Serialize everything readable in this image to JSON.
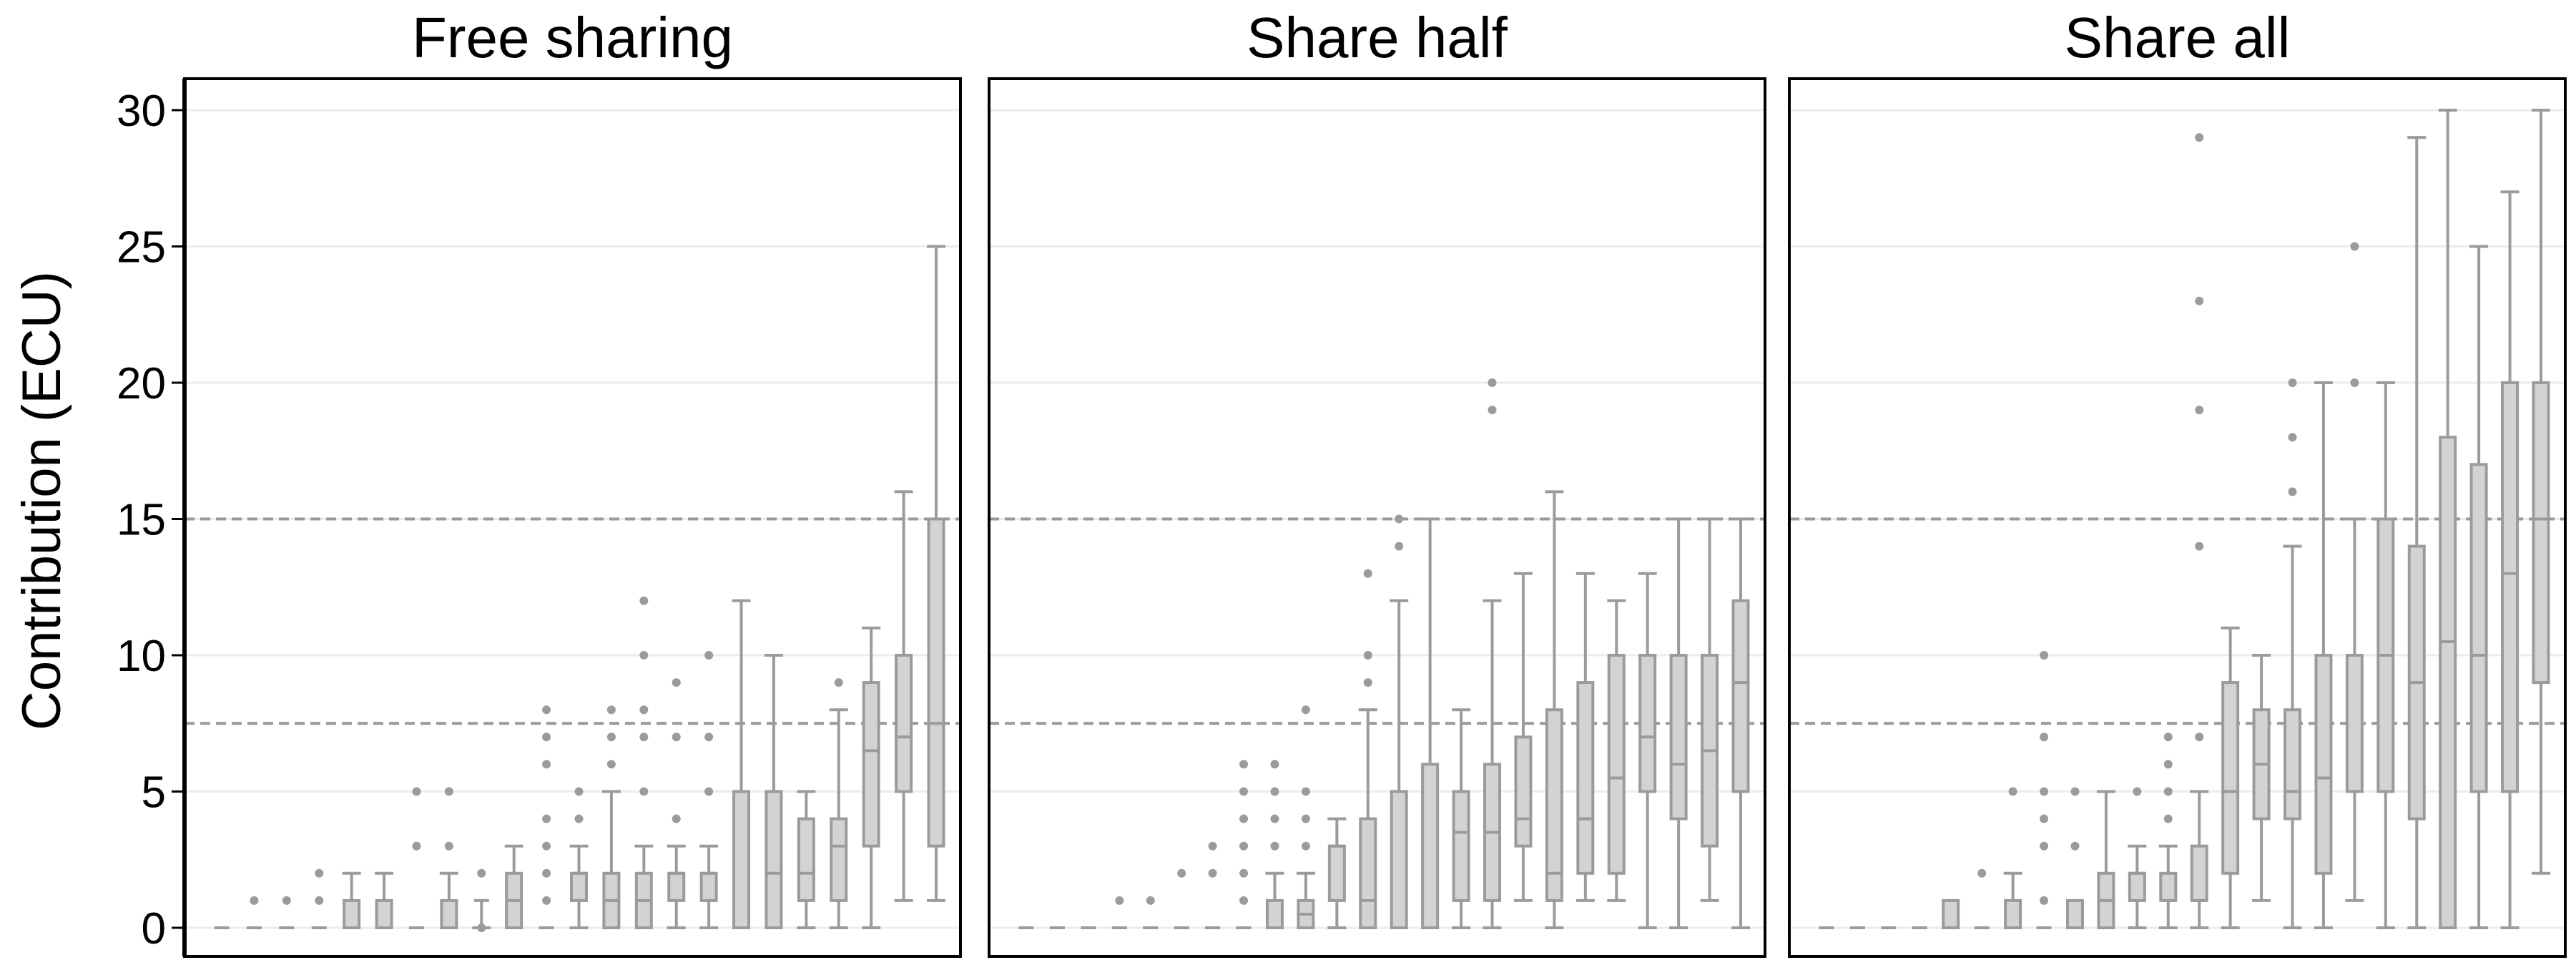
{
  "chart_data": {
    "type": "box",
    "ylabel": "Contribution (ECU)",
    "ylim": [
      -1.5,
      31
    ],
    "yticks": [
      0,
      5,
      10,
      15,
      20,
      25,
      30
    ],
    "reference_lines": [
      7.5,
      15
    ],
    "box_color": "#d3d3d3",
    "stroke_color": "#9b9b9b",
    "grid_color": "#e3f1ee",
    "panels": [
      {
        "title": "Free sharing",
        "boxes": [
          {
            "whislo": 0,
            "q1": 0,
            "med": 0,
            "q3": 0,
            "whishi": 0,
            "fliers": []
          },
          {
            "whislo": 0,
            "q1": 0,
            "med": 0,
            "q3": 0,
            "whishi": 0,
            "fliers": [
              1
            ]
          },
          {
            "whislo": 0,
            "q1": 0,
            "med": 0,
            "q3": 0,
            "whishi": 0,
            "fliers": [
              1
            ]
          },
          {
            "whislo": 0,
            "q1": 0,
            "med": 0,
            "q3": 0,
            "whishi": 0,
            "fliers": [
              1,
              2
            ]
          },
          {
            "whislo": 0,
            "q1": 0,
            "med": 0,
            "q3": 1,
            "whishi": 2,
            "fliers": []
          },
          {
            "whislo": 0,
            "q1": 0,
            "med": 0,
            "q3": 1,
            "whishi": 2,
            "fliers": []
          },
          {
            "whislo": 0,
            "q1": 0,
            "med": 0,
            "q3": 0,
            "whishi": 0,
            "fliers": [
              3,
              5
            ]
          },
          {
            "whislo": 0,
            "q1": 0,
            "med": 0,
            "q3": 1,
            "whishi": 2,
            "fliers": [
              3,
              5
            ]
          },
          {
            "whislo": 0,
            "q1": 1,
            "med": 1,
            "q3": 1,
            "whishi": 1,
            "fliers": [
              0,
              2
            ]
          },
          {
            "whislo": 0,
            "q1": 0,
            "med": 1,
            "q3": 2,
            "whishi": 3,
            "fliers": []
          },
          {
            "whislo": 0,
            "q1": 0,
            "med": 0,
            "q3": 0,
            "whishi": 0,
            "fliers": [
              1,
              2,
              3,
              4,
              6,
              7,
              8
            ]
          },
          {
            "whislo": 0,
            "q1": 1,
            "med": 2,
            "q3": 2,
            "whishi": 3,
            "fliers": [
              4,
              5
            ]
          },
          {
            "whislo": 0,
            "q1": 0,
            "med": 1,
            "q3": 2,
            "whishi": 5,
            "fliers": [
              6,
              7,
              8
            ]
          },
          {
            "whislo": 0,
            "q1": 0,
            "med": 1,
            "q3": 2,
            "whishi": 3,
            "fliers": [
              5,
              7,
              8,
              10,
              12
            ]
          },
          {
            "whislo": 0,
            "q1": 1,
            "med": 2,
            "q3": 2,
            "whishi": 3,
            "fliers": [
              4,
              7,
              9
            ]
          },
          {
            "whislo": 0,
            "q1": 1,
            "med": 2,
            "q3": 2,
            "whishi": 3,
            "fliers": [
              5,
              7,
              10
            ]
          },
          {
            "whislo": 0,
            "q1": 0,
            "med": 0,
            "q3": 5,
            "whishi": 12,
            "fliers": []
          },
          {
            "whislo": 0,
            "q1": 0,
            "med": 2,
            "q3": 5,
            "whishi": 10,
            "fliers": []
          },
          {
            "whislo": 0,
            "q1": 1,
            "med": 2,
            "q3": 4,
            "whishi": 5,
            "fliers": []
          },
          {
            "whislo": 0,
            "q1": 1,
            "med": 3,
            "q3": 4,
            "whishi": 8,
            "fliers": [
              9
            ]
          },
          {
            "whislo": 0,
            "q1": 3,
            "med": 6.5,
            "q3": 9,
            "whishi": 11,
            "fliers": []
          },
          {
            "whislo": 1,
            "q1": 5,
            "med": 7,
            "q3": 10,
            "whishi": 16,
            "fliers": []
          },
          {
            "whislo": 1,
            "q1": 3,
            "med": 7.5,
            "q3": 15,
            "whishi": 25,
            "fliers": []
          }
        ]
      },
      {
        "title": "Share half",
        "boxes": [
          {
            "whislo": 0,
            "q1": 0,
            "med": 0,
            "q3": 0,
            "whishi": 0,
            "fliers": []
          },
          {
            "whislo": 0,
            "q1": 0,
            "med": 0,
            "q3": 0,
            "whishi": 0,
            "fliers": []
          },
          {
            "whislo": 0,
            "q1": 0,
            "med": 0,
            "q3": 0,
            "whishi": 0,
            "fliers": []
          },
          {
            "whislo": 0,
            "q1": 0,
            "med": 0,
            "q3": 0,
            "whishi": 0,
            "fliers": [
              1
            ]
          },
          {
            "whislo": 0,
            "q1": 0,
            "med": 0,
            "q3": 0,
            "whishi": 0,
            "fliers": [
              1
            ]
          },
          {
            "whislo": 0,
            "q1": 0,
            "med": 0,
            "q3": 0,
            "whishi": 0,
            "fliers": [
              2
            ]
          },
          {
            "whislo": 0,
            "q1": 0,
            "med": 0,
            "q3": 0,
            "whishi": 0,
            "fliers": [
              2,
              3
            ]
          },
          {
            "whislo": 0,
            "q1": 0,
            "med": 0,
            "q3": 0,
            "whishi": 0,
            "fliers": [
              1,
              2,
              3,
              4,
              5,
              6
            ]
          },
          {
            "whislo": 0,
            "q1": 0,
            "med": 0,
            "q3": 1,
            "whishi": 2,
            "fliers": [
              3,
              4,
              5,
              6
            ]
          },
          {
            "whislo": 0,
            "q1": 0,
            "med": 0.5,
            "q3": 1,
            "whishi": 2,
            "fliers": [
              3,
              4,
              5,
              8
            ]
          },
          {
            "whislo": 0,
            "q1": 1,
            "med": 3,
            "q3": 3,
            "whishi": 4,
            "fliers": []
          },
          {
            "whislo": 0,
            "q1": 0,
            "med": 1,
            "q3": 4,
            "whishi": 8,
            "fliers": [
              9,
              10,
              13
            ]
          },
          {
            "whislo": 0,
            "q1": 0,
            "med": 0,
            "q3": 5,
            "whishi": 12,
            "fliers": [
              14,
              15
            ]
          },
          {
            "whislo": 0,
            "q1": 0,
            "med": 0,
            "q3": 6,
            "whishi": 15,
            "fliers": []
          },
          {
            "whislo": 0,
            "q1": 1,
            "med": 3.5,
            "q3": 5,
            "whishi": 8,
            "fliers": []
          },
          {
            "whislo": 0,
            "q1": 1,
            "med": 3.5,
            "q3": 6,
            "whishi": 12,
            "fliers": [
              19,
              20
            ]
          },
          {
            "whislo": 1,
            "q1": 3,
            "med": 4,
            "q3": 7,
            "whishi": 13,
            "fliers": []
          },
          {
            "whislo": 0,
            "q1": 1,
            "med": 2,
            "q3": 8,
            "whishi": 16,
            "fliers": []
          },
          {
            "whislo": 1,
            "q1": 2,
            "med": 4,
            "q3": 9,
            "whishi": 13,
            "fliers": []
          },
          {
            "whislo": 1,
            "q1": 2,
            "med": 5.5,
            "q3": 10,
            "whishi": 12,
            "fliers": []
          },
          {
            "whislo": 0,
            "q1": 5,
            "med": 7,
            "q3": 10,
            "whishi": 13,
            "fliers": []
          },
          {
            "whislo": 0,
            "q1": 4,
            "med": 6,
            "q3": 10,
            "whishi": 15,
            "fliers": []
          },
          {
            "whislo": 1,
            "q1": 3,
            "med": 6.5,
            "q3": 10,
            "whishi": 15,
            "fliers": []
          },
          {
            "whislo": 0,
            "q1": 5,
            "med": 9,
            "q3": 12,
            "whishi": 15,
            "fliers": []
          }
        ]
      },
      {
        "title": "Share all",
        "boxes": [
          {
            "whislo": 0,
            "q1": 0,
            "med": 0,
            "q3": 0,
            "whishi": 0,
            "fliers": []
          },
          {
            "whislo": 0,
            "q1": 0,
            "med": 0,
            "q3": 0,
            "whishi": 0,
            "fliers": []
          },
          {
            "whislo": 0,
            "q1": 0,
            "med": 0,
            "q3": 0,
            "whishi": 0,
            "fliers": []
          },
          {
            "whislo": 0,
            "q1": 0,
            "med": 0,
            "q3": 0,
            "whishi": 0,
            "fliers": []
          },
          {
            "whislo": 0,
            "q1": 0,
            "med": 0,
            "q3": 1,
            "whishi": 1,
            "fliers": []
          },
          {
            "whislo": 0,
            "q1": 0,
            "med": 0,
            "q3": 0,
            "whishi": 0,
            "fliers": [
              2
            ]
          },
          {
            "whislo": 0,
            "q1": 0,
            "med": 0,
            "q3": 1,
            "whishi": 2,
            "fliers": [
              5
            ]
          },
          {
            "whislo": 0,
            "q1": 0,
            "med": 0,
            "q3": 0,
            "whishi": 0,
            "fliers": [
              1,
              3,
              4,
              5,
              7,
              10
            ]
          },
          {
            "whislo": 0,
            "q1": 0,
            "med": 0,
            "q3": 1,
            "whishi": 1,
            "fliers": [
              3,
              5
            ]
          },
          {
            "whislo": 0,
            "q1": 0,
            "med": 1,
            "q3": 2,
            "whishi": 5,
            "fliers": []
          },
          {
            "whislo": 0,
            "q1": 1,
            "med": 2,
            "q3": 2,
            "whishi": 3,
            "fliers": [
              5
            ]
          },
          {
            "whislo": 0,
            "q1": 1,
            "med": 1,
            "q3": 2,
            "whishi": 3,
            "fliers": [
              4,
              5,
              6,
              7
            ]
          },
          {
            "whislo": 0,
            "q1": 1,
            "med": 1,
            "q3": 3,
            "whishi": 5,
            "fliers": [
              7,
              14,
              19,
              23,
              29
            ]
          },
          {
            "whislo": 0,
            "q1": 2,
            "med": 5,
            "q3": 9,
            "whishi": 11,
            "fliers": []
          },
          {
            "whislo": 1,
            "q1": 4,
            "med": 6,
            "q3": 8,
            "whishi": 10,
            "fliers": []
          },
          {
            "whislo": 0,
            "q1": 4,
            "med": 5,
            "q3": 8,
            "whishi": 14,
            "fliers": [
              16,
              18,
              20
            ]
          },
          {
            "whislo": 0,
            "q1": 2,
            "med": 5.5,
            "q3": 10,
            "whishi": 20,
            "fliers": []
          },
          {
            "whislo": 1,
            "q1": 5,
            "med": 5,
            "q3": 10,
            "whishi": 15,
            "fliers": [
              20,
              25
            ]
          },
          {
            "whislo": 0,
            "q1": 5,
            "med": 10,
            "q3": 15,
            "whishi": 20,
            "fliers": []
          },
          {
            "whislo": 0,
            "q1": 4,
            "med": 9,
            "q3": 14,
            "whishi": 29,
            "fliers": []
          },
          {
            "whislo": 0,
            "q1": 0,
            "med": 10.5,
            "q3": 18,
            "whishi": 30,
            "fliers": []
          },
          {
            "whislo": 0,
            "q1": 5,
            "med": 10,
            "q3": 17,
            "whishi": 25,
            "fliers": []
          },
          {
            "whislo": 0,
            "q1": 5,
            "med": 13,
            "q3": 20,
            "whishi": 27,
            "fliers": []
          },
          {
            "whislo": 2,
            "q1": 9,
            "med": 15,
            "q3": 20,
            "whishi": 30,
            "fliers": []
          }
        ]
      }
    ]
  }
}
